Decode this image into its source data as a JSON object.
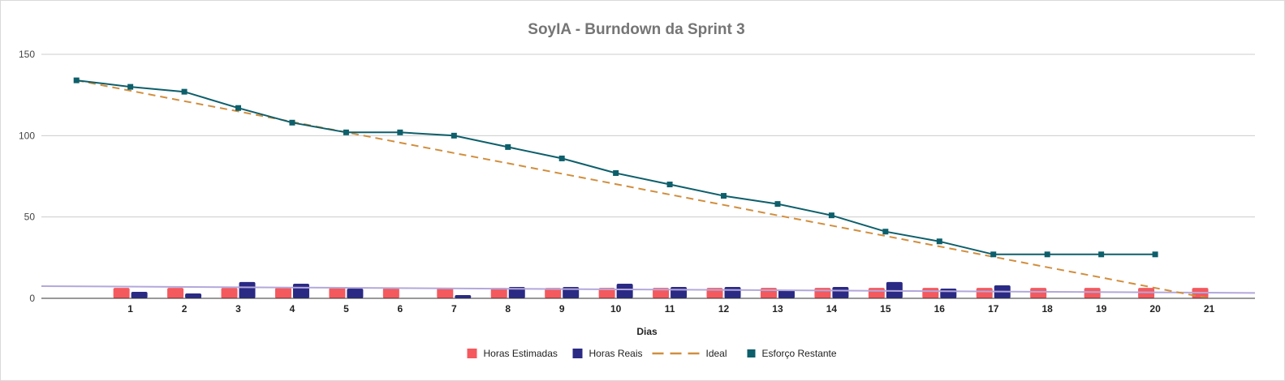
{
  "chart_data": {
    "type": "bar",
    "title": "SoyIA - Burndown da Sprint 3",
    "xlabel": "Dias",
    "ylabel": "",
    "categories": [
      "",
      "1",
      "2",
      "3",
      "4",
      "5",
      "6",
      "7",
      "8",
      "9",
      "10",
      "11",
      "12",
      "13",
      "14",
      "15",
      "16",
      "17",
      "18",
      "19",
      "20",
      "21"
    ],
    "ylim": [
      0,
      150
    ],
    "yticks": [
      "0",
      "50",
      "100",
      "150"
    ],
    "grid": true,
    "legend_position": "bottom",
    "series": [
      {
        "name": "Horas Estimadas",
        "type": "bar",
        "color": "#f4595e",
        "values": [
          null,
          6.4,
          6.4,
          6.4,
          6.4,
          6.4,
          6.4,
          6.4,
          6.4,
          6.4,
          6.4,
          6.4,
          6.4,
          6.4,
          6.4,
          6.4,
          6.4,
          6.4,
          6.4,
          6.4,
          6.4,
          6.4
        ]
      },
      {
        "name": "Horas Reais",
        "type": "bar",
        "color": "#2a2a85",
        "values": [
          null,
          4,
          3,
          10,
          9,
          6,
          0,
          2,
          7,
          7,
          9,
          7,
          7,
          5,
          7,
          10,
          6,
          8,
          null,
          null,
          null,
          null
        ]
      },
      {
        "name": "Ideal",
        "type": "line",
        "style": "dashed",
        "color": "#d18e3e",
        "values": [
          134,
          127.6,
          121.2,
          114.9,
          108.5,
          102.1,
          95.7,
          89.3,
          83.0,
          76.6,
          70.2,
          63.8,
          57.4,
          51.0,
          44.7,
          38.3,
          31.9,
          25.5,
          19.1,
          12.8,
          6.4,
          0
        ]
      },
      {
        "name": "Esforço Restante",
        "type": "line",
        "color": "#0d5f6b",
        "marker": "square",
        "values": [
          134,
          130,
          127,
          117,
          108,
          102,
          102,
          100,
          93,
          86,
          77,
          70,
          63,
          58,
          51,
          41,
          35,
          27,
          27,
          27,
          27,
          null
        ]
      }
    ],
    "trendline": {
      "color": "#b3a8db",
      "values": [
        7.5,
        3.3
      ]
    }
  }
}
